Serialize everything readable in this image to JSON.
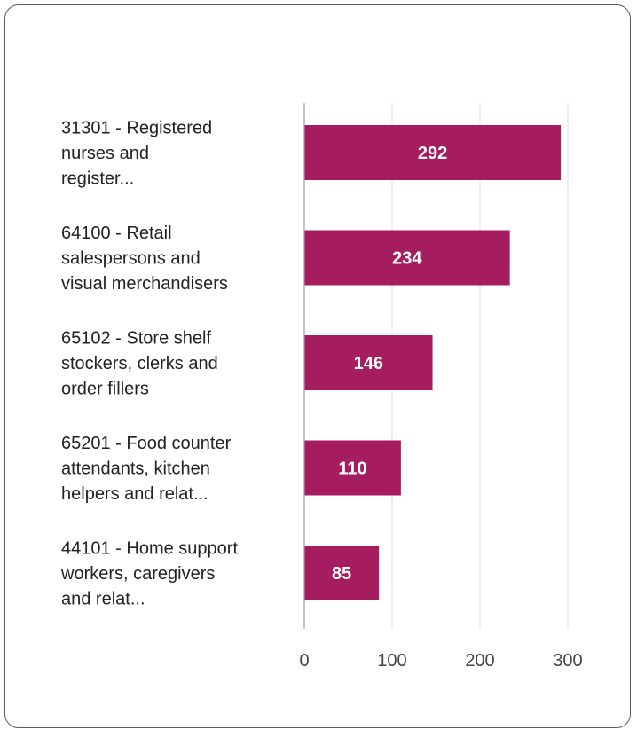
{
  "chart_data": {
    "type": "bar",
    "orientation": "horizontal",
    "categories": [
      [
        "31301 - Registered",
        "nurses and",
        "register..."
      ],
      [
        "64100 - Retail",
        "salespersons and",
        "visual merchandisers"
      ],
      [
        "65102 - Store shelf",
        "stockers, clerks and",
        "order fillers"
      ],
      [
        "65201 - Food counter",
        "attendants, kitchen",
        "helpers and relat..."
      ],
      [
        "44101 - Home support",
        "workers, caregivers",
        "and relat..."
      ]
    ],
    "values": [
      292,
      234,
      146,
      110,
      85
    ],
    "value_labels": [
      "292",
      "234",
      "146",
      "110",
      "85"
    ],
    "xlim": [
      0,
      300
    ],
    "xticks": [
      0,
      100,
      200,
      300
    ],
    "xtick_labels": [
      "0",
      "100",
      "200",
      "300"
    ],
    "grid": true,
    "legend": "none",
    "colors": {
      "bar": "#a51c5f",
      "grid": "#e0e0e0",
      "axis": "#9e9e9e"
    }
  }
}
